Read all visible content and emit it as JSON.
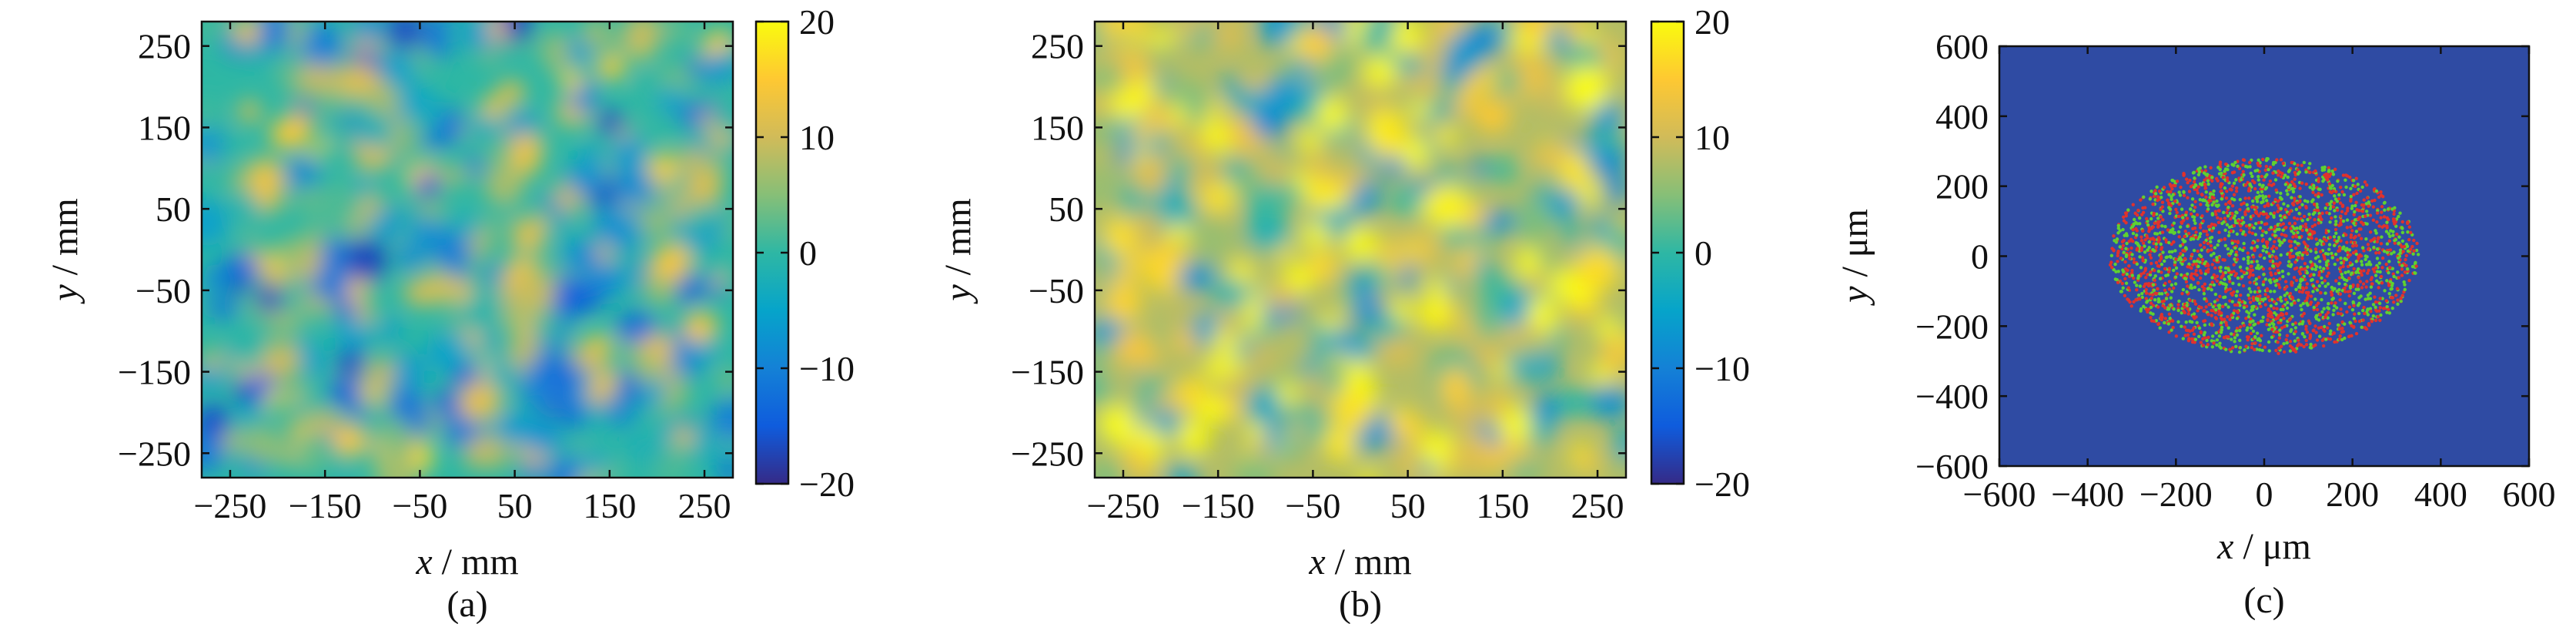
{
  "colors": {
    "parula": [
      "#352a87",
      "#0f5cdd",
      "#1481d6",
      "#06a4ca",
      "#2eb7a4",
      "#87bf77",
      "#d1bb59",
      "#fec832",
      "#f9fb0e"
    ],
    "panel_c_background": "#2f4ba3",
    "panel_c_particles": [
      "#e0322d",
      "#5fd130"
    ]
  },
  "chart_data": [
    {
      "type": "heatmap",
      "caption": "(a)",
      "xlabel_var": "x",
      "xlabel_unit": "mm",
      "ylabel_var": "y",
      "ylabel_unit": "mm",
      "xlim": [
        -280,
        280
      ],
      "ylim": [
        -280,
        280
      ],
      "xticks": [
        -250,
        -150,
        -50,
        50,
        150,
        250
      ],
      "yticks": [
        -250,
        -150,
        -50,
        50,
        150,
        250
      ],
      "colorbar": {
        "min": -20,
        "max": 20,
        "ticks": [
          20,
          10,
          0,
          -10,
          -20
        ]
      },
      "field": {
        "description": "random speckle field, values in [-20, 20]",
        "mean": 0
      }
    },
    {
      "type": "heatmap",
      "caption": "(b)",
      "xlabel_var": "x",
      "xlabel_unit": "mm",
      "ylabel_var": "y",
      "ylabel_unit": "mm",
      "xlim": [
        -280,
        280
      ],
      "ylim": [
        -280,
        280
      ],
      "xticks": [
        -250,
        -150,
        -50,
        50,
        150,
        250
      ],
      "yticks": [
        -250,
        -150,
        -50,
        50,
        150,
        250
      ],
      "colorbar": {
        "min": -20,
        "max": 20,
        "ticks": [
          20,
          10,
          0,
          -10,
          -20
        ]
      },
      "field": {
        "description": "random speckle field, values in [-20, 20], positively biased",
        "mean": 8
      }
    },
    {
      "type": "scatter",
      "caption": "(c)",
      "xlabel_var": "x",
      "xlabel_unit": "μm",
      "ylabel_var": "y",
      "ylabel_unit": "μm",
      "xlim": [
        -600,
        600
      ],
      "ylim": [
        -600,
        600
      ],
      "xticks": [
        -600,
        -400,
        -200,
        0,
        200,
        400,
        600
      ],
      "yticks": [
        600,
        400,
        200,
        0,
        -200,
        -400,
        -600
      ],
      "distribution": {
        "shape": "ellipse",
        "center": [
          0,
          0
        ],
        "semi_axis_x": 350,
        "semi_axis_y": 280
      }
    }
  ]
}
